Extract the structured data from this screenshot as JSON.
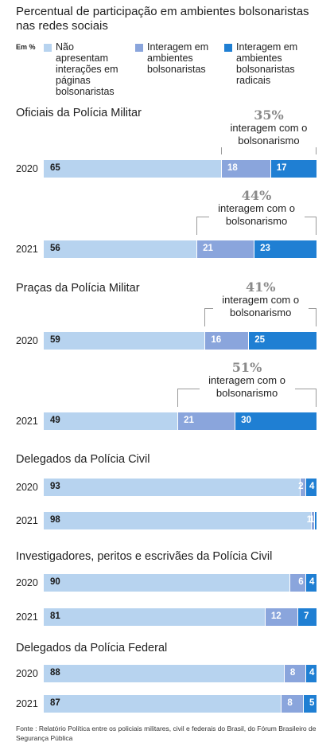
{
  "title": "Percentual de participação em ambientes bolsonaristas nas redes sociais",
  "unit_label": "Em %",
  "legend": [
    {
      "label": "Não apresentam interações em páginas bolsonaristas",
      "color": "#b7d3ef"
    },
    {
      "label": "Interagem em ambientes bolsonaristas",
      "color": "#8aa5dc"
    },
    {
      "label": "Interagem em ambientes bolsonaristas radicais",
      "color": "#1f7fd3"
    }
  ],
  "annotation_text": "interagem com o bolsonarismo",
  "source": "Fonte : Relatório Política entre os policiais militares, civil e federais do Brasil, do Fórum Brasileiro de Segurança Pública",
  "chart_data": {
    "type": "bar",
    "stacked": true,
    "orientation": "horizontal",
    "unit": "%",
    "xlim": [
      0,
      100
    ],
    "series_names": [
      "Não apresentam interações em páginas bolsonaristas",
      "Interagem em ambientes bolsonaristas",
      "Interagem em ambientes bolsonaristas radicais"
    ],
    "groups": [
      {
        "name": "Oficiais da Polícia Militar",
        "rows": [
          {
            "year": "2020",
            "values": [
              65,
              18,
              17
            ],
            "highlight": "35%"
          },
          {
            "year": "2021",
            "values": [
              56,
              21,
              23
            ],
            "highlight": "44%"
          }
        ]
      },
      {
        "name": "Praças da Polícia Militar",
        "rows": [
          {
            "year": "2020",
            "values": [
              59,
              16,
              25
            ],
            "highlight": "41%"
          },
          {
            "year": "2021",
            "values": [
              49,
              21,
              30
            ],
            "highlight": "51%"
          }
        ]
      },
      {
        "name": "Delegados da Polícia Civil",
        "rows": [
          {
            "year": "2020",
            "values": [
              93,
              2,
              4
            ]
          },
          {
            "year": "2021",
            "values": [
              98,
              1,
              1
            ]
          }
        ]
      },
      {
        "name": "Investigadores, peritos e escrivães da Polícia Civil",
        "rows": [
          {
            "year": "2020",
            "values": [
              90,
              6,
              4
            ]
          },
          {
            "year": "2021",
            "values": [
              81,
              12,
              7
            ]
          }
        ]
      },
      {
        "name": "Delegados da Polícia Federal",
        "rows": [
          {
            "year": "2020",
            "values": [
              88,
              8,
              4
            ]
          },
          {
            "year": "2021",
            "values": [
              87,
              8,
              5
            ]
          }
        ]
      }
    ]
  }
}
